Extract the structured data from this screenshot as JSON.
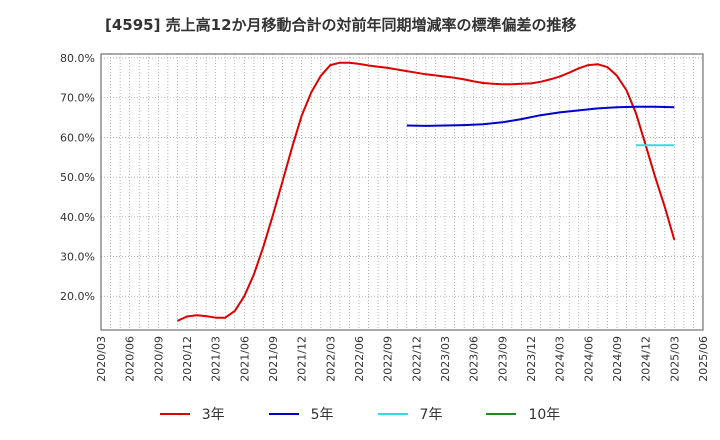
{
  "chart_data": {
    "type": "line",
    "title": "[4595]  売上高12か月移動合計の対前年同期増減率の標準偏差の推移",
    "xlabel": "",
    "ylabel": "",
    "ylim": [
      11.5,
      81.0
    ],
    "y_ticks": [
      20,
      30,
      40,
      50,
      60,
      70,
      80
    ],
    "y_tick_labels": [
      "20.0%",
      "30.0%",
      "40.0%",
      "50.0%",
      "60.0%",
      "70.0%",
      "80.0%"
    ],
    "x_range": [
      "2020/03",
      "2025/06"
    ],
    "x_tick_labels": [
      "2020/03",
      "2020/06",
      "2020/09",
      "2020/12",
      "2021/03",
      "2021/06",
      "2021/09",
      "2021/12",
      "2022/03",
      "2022/06",
      "2022/09",
      "2022/12",
      "2023/03",
      "2023/06",
      "2023/09",
      "2023/12",
      "2024/03",
      "2024/06",
      "2024/09",
      "2024/12",
      "2025/03",
      "2025/06"
    ],
    "grid": true,
    "legend_position": "bottom",
    "series": [
      {
        "name": "3年",
        "color": "#dd0000",
        "x": [
          "2020/11",
          "2020/12",
          "2021/01",
          "2021/02",
          "2021/03",
          "2021/04",
          "2021/05",
          "2021/06",
          "2021/07",
          "2021/08",
          "2021/09",
          "2021/10",
          "2021/11",
          "2021/12",
          "2022/01",
          "2022/02",
          "2022/03",
          "2022/04",
          "2022/05",
          "2022/06",
          "2022/07",
          "2022/08",
          "2022/09",
          "2022/10",
          "2022/11",
          "2022/12",
          "2023/01",
          "2023/02",
          "2023/03",
          "2023/04",
          "2023/05",
          "2023/06",
          "2023/07",
          "2023/08",
          "2023/09",
          "2023/10",
          "2023/11",
          "2023/12",
          "2024/01",
          "2024/02",
          "2024/03",
          "2024/04",
          "2024/05",
          "2024/06",
          "2024/07",
          "2024/08",
          "2024/09",
          "2024/10",
          "2024/11",
          "2024/12",
          "2025/01",
          "2025/02",
          "2025/03"
        ],
        "values": [
          13.8,
          14.9,
          15.2,
          15.0,
          14.6,
          14.6,
          16.3,
          20.0,
          25.5,
          32.5,
          40.5,
          49.0,
          57.5,
          65.5,
          71.3,
          75.5,
          78.2,
          78.8,
          78.8,
          78.5,
          78.1,
          77.8,
          77.5,
          77.1,
          76.7,
          76.3,
          75.9,
          75.6,
          75.3,
          75.0,
          74.6,
          74.1,
          73.7,
          73.5,
          73.4,
          73.4,
          73.5,
          73.6,
          74.0,
          74.6,
          75.3,
          76.3,
          77.4,
          78.2,
          78.4,
          77.7,
          75.5,
          71.8,
          66.0,
          58.0,
          50.0,
          42.5,
          34.2
        ]
      },
      {
        "name": "5年",
        "color": "#0000cc",
        "x": [
          "2022/11",
          "2023/01",
          "2023/03",
          "2023/05",
          "2023/07",
          "2023/09",
          "2023/11",
          "2024/01",
          "2024/03",
          "2024/05",
          "2024/07",
          "2024/09",
          "2024/11",
          "2025/01",
          "2025/03"
        ],
        "values": [
          63.0,
          62.9,
          63.0,
          63.1,
          63.3,
          63.8,
          64.6,
          65.6,
          66.3,
          66.8,
          67.3,
          67.6,
          67.7,
          67.7,
          67.6
        ]
      },
      {
        "name": "7年",
        "color": "#33dddd",
        "x": [
          "2024/11",
          "2024/12",
          "2025/01",
          "2025/02",
          "2025/03"
        ],
        "values": [
          58.0,
          58.0,
          58.0,
          58.0,
          58.0
        ]
      },
      {
        "name": "10年",
        "color": "#228822",
        "x": [],
        "values": []
      }
    ]
  }
}
